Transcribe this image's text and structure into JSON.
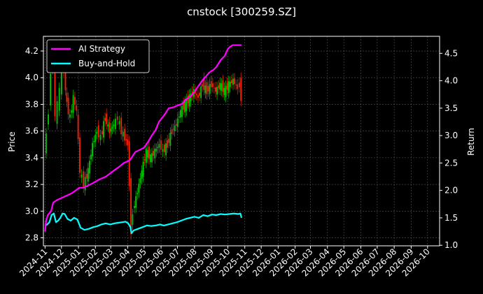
{
  "chart_data": {
    "type": "line",
    "title": "cnstock [300259.SZ]",
    "ylabel_left": "Price",
    "ylabel_right": "Return",
    "left_ticks": [
      "2.8",
      "3.0",
      "3.2",
      "3.4",
      "3.6",
      "3.8",
      "4.0",
      "4.2"
    ],
    "left_ylim": [
      2.74,
      4.31
    ],
    "right_ticks": [
      "1.0",
      "1.5",
      "2.0",
      "2.5",
      "3.0",
      "3.5",
      "4.0",
      "4.5"
    ],
    "right_ylim": [
      0.99,
      4.81
    ],
    "x_tick_labels": [
      "2024-11",
      "2024-12",
      "2025-01",
      "2025-02",
      "2025-03",
      "2025-04",
      "2025-05",
      "2025-06",
      "2025-07",
      "2025-08",
      "2025-09",
      "2025-10",
      "2025-11",
      "2025-12",
      "2026-01",
      "2026-02",
      "2026-03",
      "2026-04",
      "2026-05",
      "2026-06",
      "2026-07",
      "2026-08",
      "2026-09",
      "2026-10"
    ],
    "grid": true,
    "legend_position": "top-left",
    "series": [
      {
        "name": "AI Strategy",
        "axis": "right",
        "color": "#ff00ff",
        "points": [
          [
            "2024-11-01",
            1.25
          ],
          [
            "2024-11-03",
            1.45
          ],
          [
            "2024-11-06",
            1.55
          ],
          [
            "2024-11-12",
            1.62
          ],
          [
            "2024-11-16",
            1.78
          ],
          [
            "2024-11-22",
            1.82
          ],
          [
            "2024-12-05",
            1.88
          ],
          [
            "2024-12-20",
            1.95
          ],
          [
            "2025-01-03",
            2.05
          ],
          [
            "2025-01-10",
            2.05
          ],
          [
            "2025-01-25",
            2.12
          ],
          [
            "2025-02-08",
            2.2
          ],
          [
            "2025-02-20",
            2.25
          ],
          [
            "2025-03-05",
            2.35
          ],
          [
            "2025-03-15",
            2.42
          ],
          [
            "2025-03-25",
            2.5
          ],
          [
            "2025-04-05",
            2.55
          ],
          [
            "2025-04-15",
            2.7
          ],
          [
            "2025-04-25",
            2.75
          ],
          [
            "2025-05-01",
            2.78
          ],
          [
            "2025-05-08",
            2.88
          ],
          [
            "2025-05-15",
            3.0
          ],
          [
            "2025-05-22",
            3.1
          ],
          [
            "2025-05-28",
            3.25
          ],
          [
            "2025-06-05",
            3.35
          ],
          [
            "2025-06-10",
            3.42
          ],
          [
            "2025-06-15",
            3.5
          ],
          [
            "2025-06-25",
            3.52
          ],
          [
            "2025-07-01",
            3.55
          ],
          [
            "2025-07-10",
            3.58
          ],
          [
            "2025-07-15",
            3.65
          ],
          [
            "2025-07-25",
            3.72
          ],
          [
            "2025-08-01",
            3.8
          ],
          [
            "2025-08-08",
            3.9
          ],
          [
            "2025-08-15",
            4.0
          ],
          [
            "2025-08-22",
            4.08
          ],
          [
            "2025-08-28",
            4.15
          ],
          [
            "2025-09-05",
            4.2
          ],
          [
            "2025-09-10",
            4.25
          ],
          [
            "2025-09-18",
            4.38
          ],
          [
            "2025-09-25",
            4.45
          ],
          [
            "2025-10-01",
            4.58
          ],
          [
            "2025-10-05",
            4.62
          ],
          [
            "2025-10-10",
            4.65
          ],
          [
            "2025-10-20",
            4.65
          ],
          [
            "2025-10-26",
            4.65
          ]
        ]
      },
      {
        "name": "Buy-and-Hold",
        "axis": "right",
        "color": "#00ffff",
        "points": [
          [
            "2024-11-01",
            1.35
          ],
          [
            "2024-11-05",
            1.38
          ],
          [
            "2024-11-09",
            1.42
          ],
          [
            "2024-11-13",
            1.55
          ],
          [
            "2024-11-17",
            1.58
          ],
          [
            "2024-11-21",
            1.42
          ],
          [
            "2024-11-25",
            1.45
          ],
          [
            "2024-11-29",
            1.5
          ],
          [
            "2024-12-03",
            1.58
          ],
          [
            "2024-12-07",
            1.57
          ],
          [
            "2024-12-12",
            1.48
          ],
          [
            "2024-12-18",
            1.45
          ],
          [
            "2024-12-24",
            1.5
          ],
          [
            "2024-12-30",
            1.47
          ],
          [
            "2025-01-05",
            1.32
          ],
          [
            "2025-01-12",
            1.28
          ],
          [
            "2025-01-20",
            1.3
          ],
          [
            "2025-01-28",
            1.33
          ],
          [
            "2025-02-05",
            1.35
          ],
          [
            "2025-02-12",
            1.38
          ],
          [
            "2025-02-20",
            1.4
          ],
          [
            "2025-02-28",
            1.38
          ],
          [
            "2025-03-08",
            1.4
          ],
          [
            "2025-03-15",
            1.41
          ],
          [
            "2025-03-22",
            1.42
          ],
          [
            "2025-03-28",
            1.43
          ],
          [
            "2025-04-02",
            1.4
          ],
          [
            "2025-04-06",
            1.33
          ],
          [
            "2025-04-08",
            1.22
          ],
          [
            "2025-04-12",
            1.27
          ],
          [
            "2025-04-20",
            1.3
          ],
          [
            "2025-04-28",
            1.33
          ],
          [
            "2025-05-06",
            1.36
          ],
          [
            "2025-05-14",
            1.35
          ],
          [
            "2025-05-22",
            1.36
          ],
          [
            "2025-05-30",
            1.38
          ],
          [
            "2025-06-06",
            1.36
          ],
          [
            "2025-06-14",
            1.38
          ],
          [
            "2025-06-22",
            1.4
          ],
          [
            "2025-06-30",
            1.42
          ],
          [
            "2025-07-08",
            1.45
          ],
          [
            "2025-07-16",
            1.48
          ],
          [
            "2025-07-24",
            1.5
          ],
          [
            "2025-08-01",
            1.52
          ],
          [
            "2025-08-09",
            1.5
          ],
          [
            "2025-08-17",
            1.55
          ],
          [
            "2025-08-25",
            1.53
          ],
          [
            "2025-09-02",
            1.56
          ],
          [
            "2025-09-10",
            1.55
          ],
          [
            "2025-09-18",
            1.57
          ],
          [
            "2025-09-26",
            1.56
          ],
          [
            "2025-10-04",
            1.57
          ],
          [
            "2025-10-12",
            1.58
          ],
          [
            "2025-10-20",
            1.57
          ],
          [
            "2025-10-24",
            1.58
          ],
          [
            "2025-10-26",
            1.5
          ]
        ]
      },
      {
        "name": "price-candles",
        "axis": "left",
        "color_up": "#00cc00",
        "color_down": "#ff2200",
        "points": [
          [
            "2024-11-01",
            3.4
          ],
          [
            "2024-11-05",
            3.6
          ],
          [
            "2024-11-09",
            3.75
          ],
          [
            "2024-11-13",
            4.05
          ],
          [
            "2024-11-17",
            4.2
          ],
          [
            "2024-11-21",
            3.7
          ],
          [
            "2024-11-25",
            3.8
          ],
          [
            "2024-11-29",
            3.9
          ],
          [
            "2024-12-03",
            4.1
          ],
          [
            "2024-12-07",
            4.05
          ],
          [
            "2024-12-12",
            3.8
          ],
          [
            "2024-12-18",
            3.7
          ],
          [
            "2024-12-24",
            3.85
          ],
          [
            "2024-12-30",
            3.75
          ],
          [
            "2025-01-05",
            3.3
          ],
          [
            "2025-01-12",
            3.2
          ],
          [
            "2025-01-20",
            3.3
          ],
          [
            "2025-01-28",
            3.5
          ],
          [
            "2025-02-05",
            3.6
          ],
          [
            "2025-02-12",
            3.55
          ],
          [
            "2025-02-20",
            3.7
          ],
          [
            "2025-02-28",
            3.6
          ],
          [
            "2025-03-08",
            3.65
          ],
          [
            "2025-03-15",
            3.7
          ],
          [
            "2025-03-22",
            3.6
          ],
          [
            "2025-03-28",
            3.55
          ],
          [
            "2025-04-02",
            3.5
          ],
          [
            "2025-04-06",
            3.2
          ],
          [
            "2025-04-08",
            2.85
          ],
          [
            "2025-04-12",
            3.0
          ],
          [
            "2025-04-20",
            3.15
          ],
          [
            "2025-04-28",
            3.3
          ],
          [
            "2025-05-06",
            3.45
          ],
          [
            "2025-05-14",
            3.4
          ],
          [
            "2025-05-22",
            3.45
          ],
          [
            "2025-05-30",
            3.5
          ],
          [
            "2025-06-06",
            3.45
          ],
          [
            "2025-06-14",
            3.5
          ],
          [
            "2025-06-22",
            3.6
          ],
          [
            "2025-06-30",
            3.65
          ],
          [
            "2025-07-08",
            3.75
          ],
          [
            "2025-07-16",
            3.8
          ],
          [
            "2025-07-24",
            3.85
          ],
          [
            "2025-08-01",
            3.9
          ],
          [
            "2025-08-09",
            3.85
          ],
          [
            "2025-08-17",
            3.95
          ],
          [
            "2025-08-25",
            3.9
          ],
          [
            "2025-09-02",
            3.95
          ],
          [
            "2025-09-10",
            3.9
          ],
          [
            "2025-09-18",
            3.95
          ],
          [
            "2025-09-26",
            3.9
          ],
          [
            "2025-10-04",
            3.95
          ],
          [
            "2025-10-12",
            3.98
          ],
          [
            "2025-10-20",
            3.92
          ],
          [
            "2025-10-24",
            3.95
          ],
          [
            "2025-10-26",
            3.85
          ]
        ]
      }
    ]
  }
}
